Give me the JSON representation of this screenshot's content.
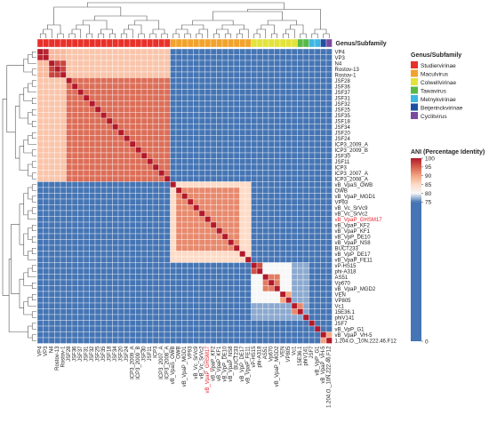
{
  "chart_data": {
    "type": "heatmap",
    "labels": [
      "VP4",
      "VP3",
      "N4",
      "Rostov-13",
      "Rostov-1",
      "JSF28",
      "JSF36",
      "JSF37",
      "JSF31",
      "JSF32",
      "JSF25",
      "JSF35",
      "JSF18",
      "JSF34",
      "JSF20",
      "JSF24",
      "ICP3_2009_A",
      "ICP3_2009_B",
      "JSF30",
      "JSF11",
      "ICP3",
      "ICP3_2007_A",
      "ICP3_2008_A",
      "vB_VpaS_OWB",
      "OWB",
      "vB_VpaP_MGD1",
      "VP93",
      "vB_Vc_SrVc9",
      "vB_Vc_SrVc2",
      "vB_VpaP_GHSM17",
      "vB_VpaP_KF2",
      "vB_VpaP_KF1",
      "vB_VpP_DE10",
      "vB_VpaP_NS8",
      "BUCT233",
      "vB_VpP_DE17",
      "vB_VpaP_FE11",
      "vP-HS15",
      "phi-A318",
      "AS51",
      "Vp670",
      "vB_VpaP_MGD2",
      "VEN",
      "VP805",
      "Vc1",
      "15E36.1",
      "phiV141",
      "JSF7",
      "vB_VpP_G1",
      "vB_VpaP_VH-5",
      "1.204.O._10N.222.46.F12"
    ],
    "highlight_label": "vB_VpaP_GHSM17",
    "highlight_color": "#e8202a",
    "genus_title": "Genus/Subfamily",
    "genus_legend": [
      {
        "name": "Studiervirinae",
        "color": "#e8312a"
      },
      {
        "name": "Maculvirus",
        "color": "#f2a32c"
      },
      {
        "name": "Colwellvirinae",
        "color": "#e3e33a"
      },
      {
        "name": "Tawavirus",
        "color": "#58b947"
      },
      {
        "name": "Melnykvirinae",
        "color": "#3db7e4"
      },
      {
        "name": "Beijerinckvirinae",
        "color": "#1f4fa0"
      },
      {
        "name": "Cyclitvirus",
        "color": "#7a4a9e"
      }
    ],
    "genus_assignment": [
      0,
      0,
      0,
      0,
      0,
      0,
      0,
      0,
      0,
      0,
      0,
      0,
      0,
      0,
      0,
      0,
      0,
      0,
      0,
      0,
      0,
      0,
      0,
      1,
      1,
      1,
      1,
      1,
      1,
      1,
      1,
      1,
      1,
      1,
      1,
      1,
      1,
      2,
      2,
      2,
      2,
      2,
      2,
      2,
      2,
      3,
      3,
      4,
      4,
      5,
      6
    ],
    "colorbar": {
      "title": "ANI (Percentage Identity)",
      "ticks": [
        100,
        95,
        90,
        85,
        80,
        75,
        0
      ],
      "colors": [
        "#b2182b",
        "#d6604d",
        "#f4a582",
        "#fddbc7",
        "#f7f7f7",
        "#4575b4"
      ]
    },
    "clusters": [
      {
        "members": [
          0,
          1
        ],
        "value": 99
      },
      {
        "members": [
          2,
          3,
          4
        ],
        "value": 97
      },
      {
        "members": [
          0,
          1,
          2,
          3,
          4
        ],
        "value": 88
      },
      {
        "members": [
          5,
          6,
          7,
          8,
          9,
          10,
          11,
          12,
          13,
          14,
          15,
          16,
          17,
          18,
          19,
          20,
          21,
          22
        ],
        "value": 94
      },
      {
        "members": [
          0,
          1,
          2,
          3,
          4,
          5,
          6,
          7,
          8,
          9,
          10,
          11,
          12,
          13,
          14,
          15,
          16,
          17,
          18,
          19,
          20,
          21,
          22
        ],
        "value": 87
      },
      {
        "members": [
          23,
          24,
          25,
          26,
          27,
          28,
          29,
          30,
          31,
          32,
          33,
          34,
          35,
          36
        ],
        "value": 85
      },
      {
        "members": [
          24,
          25,
          26,
          27,
          28,
          29,
          30,
          31,
          32,
          33,
          34
        ],
        "value": 92
      },
      {
        "members": [
          37,
          38
        ],
        "value": 96
      },
      {
        "members": [
          39,
          40,
          41
        ],
        "value": 93
      },
      {
        "members": [
          42,
          43
        ],
        "value": 90
      },
      {
        "members": [
          44,
          45
        ],
        "value": 92
      },
      {
        "members": [
          49,
          50
        ],
        "value": 90
      },
      {
        "members": [
          37,
          38,
          39,
          40,
          41,
          42,
          43
        ],
        "value": 80
      },
      {
        "members": [
          37,
          38,
          39,
          40,
          41,
          42,
          43,
          44,
          45,
          46
        ],
        "value": 77
      }
    ],
    "background_value": 70,
    "diagonal_value": 100
  }
}
